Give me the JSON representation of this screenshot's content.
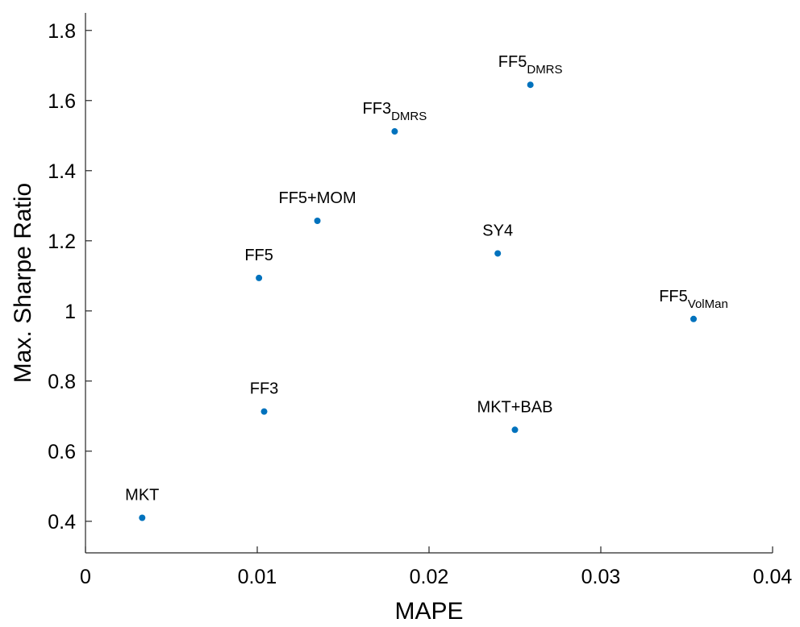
{
  "chart_data": {
    "type": "scatter",
    "xlabel": "MAPE",
    "ylabel": "Max. Sharpe Ratio",
    "xlim": [
      0,
      0.04
    ],
    "ylim": [
      0.31,
      1.85
    ],
    "x_ticks": [
      0,
      0.01,
      0.02,
      0.03,
      0.04
    ],
    "x_tick_labels": [
      "0",
      "0.01",
      "0.02",
      "0.03",
      "0.04"
    ],
    "y_ticks": [
      0.4,
      0.6,
      0.8,
      1.0,
      1.2,
      1.4,
      1.6,
      1.8
    ],
    "y_tick_labels": [
      "0.4",
      "0.6",
      "0.8",
      "1",
      "1.2",
      "1.4",
      "1.6",
      "1.8"
    ],
    "grid": false,
    "marker_color": "#0072BD",
    "points": [
      {
        "label": "MKT",
        "sub": "",
        "x": 0.0033,
        "y": 0.41
      },
      {
        "label": "FF3",
        "sub": "",
        "x": 0.0104,
        "y": 0.713
      },
      {
        "label": "FF5",
        "sub": "",
        "x": 0.0101,
        "y": 1.094
      },
      {
        "label": "FF5+MOM",
        "sub": "",
        "x": 0.0135,
        "y": 1.257
      },
      {
        "label": "FF3",
        "sub": "DMRS",
        "x": 0.018,
        "y": 1.512
      },
      {
        "label": "FF5",
        "sub": "DMRS",
        "x": 0.0259,
        "y": 1.645
      },
      {
        "label": "SY4",
        "sub": "",
        "x": 0.024,
        "y": 1.164
      },
      {
        "label": "FF5",
        "sub": "VolMan",
        "x": 0.0354,
        "y": 0.977
      },
      {
        "label": "MKT+BAB",
        "sub": "",
        "x": 0.025,
        "y": 0.661
      }
    ]
  }
}
